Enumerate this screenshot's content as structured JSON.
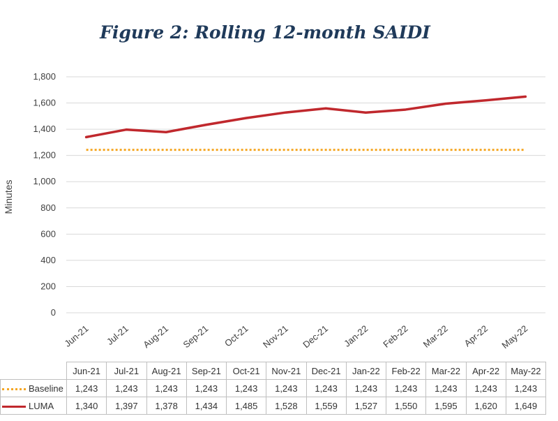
{
  "chart_data": {
    "type": "line",
    "title": "Figure 2: Rolling 12-month SAIDI",
    "xlabel": "",
    "ylabel": "Minutes",
    "ylim": [
      0,
      1800
    ],
    "yticks": [
      "0",
      "200",
      "400",
      "600",
      "800",
      "1,000",
      "1,200",
      "1,400",
      "1,600",
      "1,800"
    ],
    "categories": [
      "Jun-21",
      "Jul-21",
      "Aug-21",
      "Sep-21",
      "Oct-21",
      "Nov-21",
      "Dec-21",
      "Jan-22",
      "Feb-22",
      "Mar-22",
      "Apr-22",
      "May-22"
    ],
    "series": [
      {
        "name": "Baseline",
        "style": "dotted",
        "color": "#f5a623",
        "values": [
          1243,
          1243,
          1243,
          1243,
          1243,
          1243,
          1243,
          1243,
          1243,
          1243,
          1243,
          1243
        ],
        "labels": [
          "1,243",
          "1,243",
          "1,243",
          "1,243",
          "1,243",
          "1,243",
          "1,243",
          "1,243",
          "1,243",
          "1,243",
          "1,243",
          "1,243"
        ]
      },
      {
        "name": "LUMA",
        "style": "solid",
        "color": "#c0282d",
        "values": [
          1340,
          1397,
          1378,
          1434,
          1485,
          1528,
          1559,
          1527,
          1550,
          1595,
          1620,
          1649
        ],
        "labels": [
          "1,340",
          "1,397",
          "1,378",
          "1,434",
          "1,485",
          "1,528",
          "1,559",
          "1,527",
          "1,550",
          "1,595",
          "1,620",
          "1,649"
        ]
      }
    ],
    "grid": true,
    "legend": "data-table"
  }
}
